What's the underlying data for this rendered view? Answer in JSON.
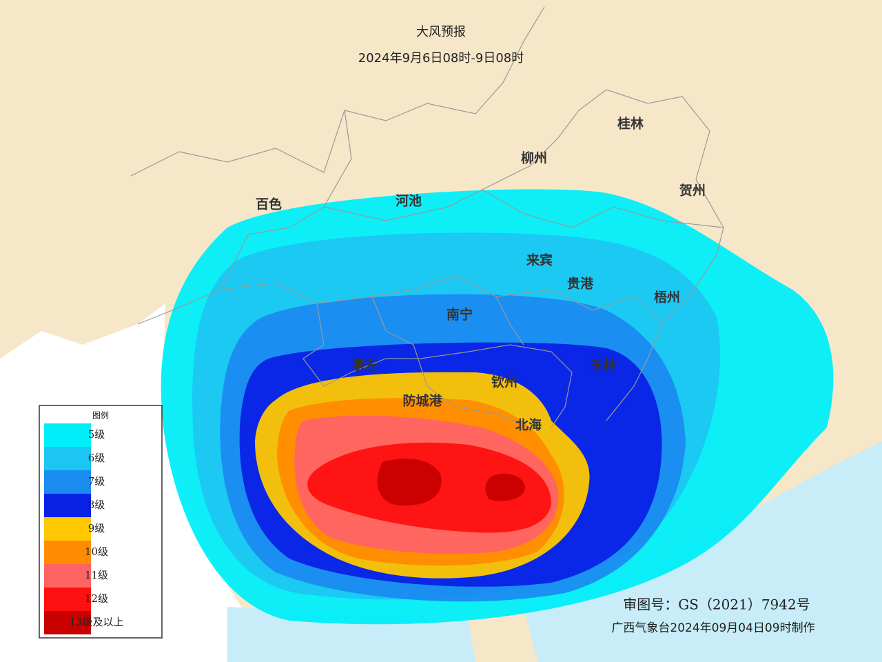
{
  "map": {
    "title": "大风预报",
    "subtitle": "2024年9月6日08时-9日08时",
    "cities": [
      {
        "name": "桂林"
      },
      {
        "name": "柳州"
      },
      {
        "name": "贺州"
      },
      {
        "name": "百色"
      },
      {
        "name": "河池"
      },
      {
        "name": "来宾"
      },
      {
        "name": "贵港"
      },
      {
        "name": "梧州"
      },
      {
        "name": "南宁"
      },
      {
        "name": "崇左"
      },
      {
        "name": "玉林"
      },
      {
        "name": "钦州"
      },
      {
        "name": "防城港"
      },
      {
        "name": "北海"
      }
    ],
    "legend": {
      "title": "图例",
      "items": [
        {
          "label": "5级",
          "color": "#00eefa"
        },
        {
          "label": "6级",
          "color": "#1cc6f2"
        },
        {
          "label": "7级",
          "color": "#1a8cf0"
        },
        {
          "label": "8级",
          "color": "#0a22e6"
        },
        {
          "label": "9级",
          "color": "#ffc800"
        },
        {
          "label": "10级",
          "color": "#ff8c00"
        },
        {
          "label": "11级",
          "color": "#ff6464"
        },
        {
          "label": "12级",
          "color": "#ff1010"
        },
        {
          "label": "13级及以上",
          "color": "#c80000"
        }
      ]
    },
    "approval": "审图号：GS（2021）7942号",
    "credit": "广西气象台2024年09月04日09时制作"
  }
}
